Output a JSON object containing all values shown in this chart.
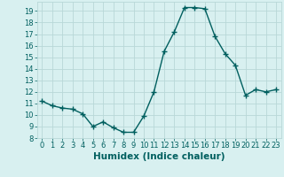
{
  "x": [
    0,
    1,
    2,
    3,
    4,
    5,
    6,
    7,
    8,
    9,
    10,
    11,
    12,
    13,
    14,
    15,
    16,
    17,
    18,
    19,
    20,
    21,
    22,
    23
  ],
  "y": [
    11.2,
    10.8,
    10.6,
    10.5,
    10.1,
    9.0,
    9.4,
    8.9,
    8.5,
    8.5,
    9.9,
    12.0,
    15.5,
    17.2,
    19.3,
    19.3,
    19.2,
    16.8,
    15.3,
    14.3,
    11.7,
    12.2,
    12.0,
    12.2
  ],
  "line_color": "#005f5f",
  "bg_color": "#d8f0f0",
  "grid_color": "#b8d8d8",
  "xlabel": "Humidex (Indice chaleur)",
  "ylim": [
    8,
    19.8
  ],
  "xlim": [
    -0.5,
    23.5
  ],
  "yticks": [
    8,
    9,
    10,
    11,
    12,
    13,
    14,
    15,
    16,
    17,
    18,
    19
  ],
  "xticks": [
    0,
    1,
    2,
    3,
    4,
    5,
    6,
    7,
    8,
    9,
    10,
    11,
    12,
    13,
    14,
    15,
    16,
    17,
    18,
    19,
    20,
    21,
    22,
    23
  ],
  "tick_fontsize": 6,
  "xlabel_fontsize": 7.5,
  "marker": "+",
  "markersize": 4,
  "linewidth": 1.0
}
